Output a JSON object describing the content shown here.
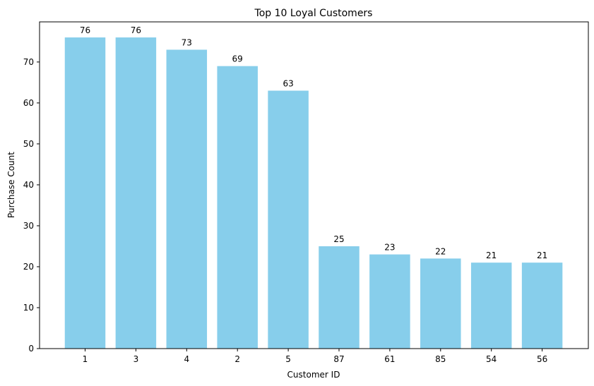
{
  "chart_data": {
    "type": "bar",
    "title": "Top 10 Loyal Customers",
    "xlabel": "Customer ID",
    "ylabel": "Purchase Count",
    "categories": [
      "1",
      "3",
      "4",
      "2",
      "5",
      "87",
      "61",
      "85",
      "54",
      "56"
    ],
    "values": [
      76,
      76,
      73,
      69,
      63,
      25,
      23,
      22,
      21,
      21
    ],
    "ylim": [
      0,
      79.8
    ],
    "yticks": [
      0,
      10,
      20,
      30,
      40,
      50,
      60,
      70
    ],
    "bar_color": "#87ceeb",
    "grid": false,
    "data_labels": true
  }
}
